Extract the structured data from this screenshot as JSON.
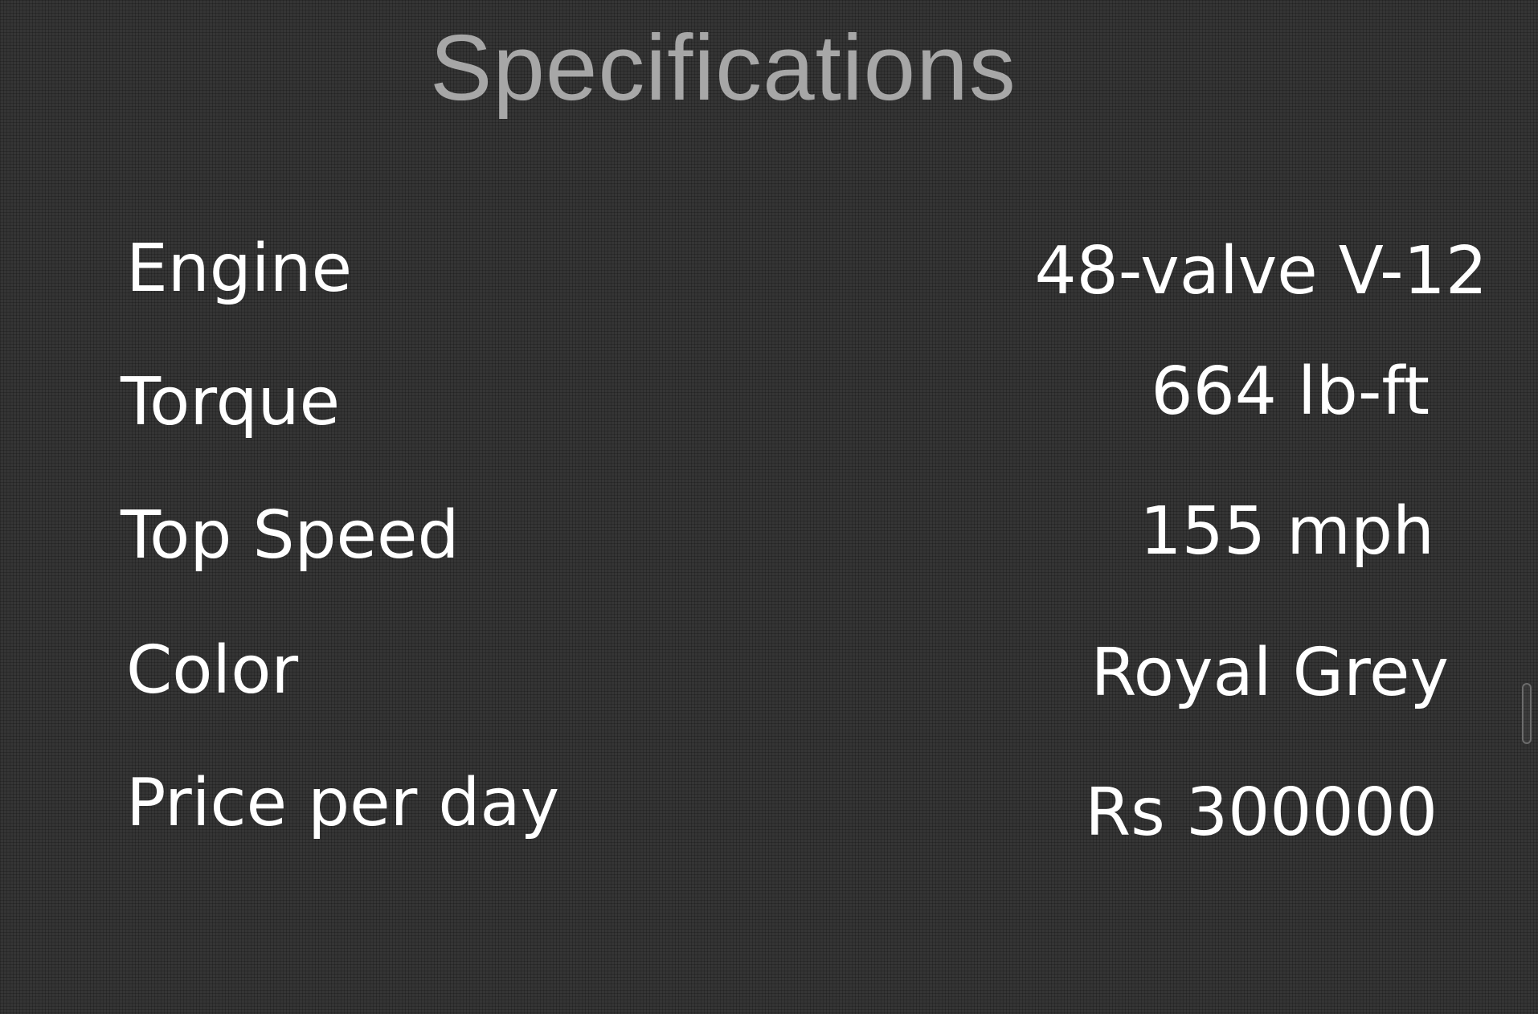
{
  "page": {
    "title": "Specifications"
  },
  "specs": [
    {
      "label": "Engine",
      "value": "48-valve V-12"
    },
    {
      "label": "Torque",
      "value": "664 lb-ft"
    },
    {
      "label": "Top Speed",
      "value": "155 mph"
    },
    {
      "label": "Color",
      "value": "Royal Grey"
    },
    {
      "label": "Price per day",
      "value": "Rs 300000"
    }
  ],
  "colors": {
    "background": "#353535",
    "title": "#a7a7a7",
    "text": "#ffffff",
    "scrollbar": "#6c6c6c"
  }
}
